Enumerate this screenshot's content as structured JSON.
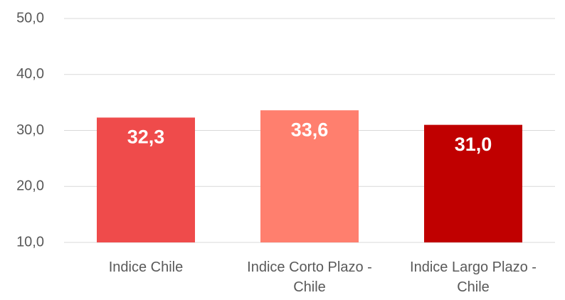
{
  "chart_data": {
    "type": "bar",
    "categories": [
      "Indice Chile",
      "Indice Corto Plazo - Chile",
      "Indice Largo Plazo - Chile"
    ],
    "values": [
      32.3,
      33.6,
      31.0
    ],
    "value_labels": [
      "32,3",
      "33,6",
      "31,0"
    ],
    "colors": [
      "#ef4b4b",
      "#ff7f6e",
      "#c00000"
    ],
    "ylim": [
      10,
      50
    ],
    "yticks": [
      {
        "value": 10,
        "label": "10,0"
      },
      {
        "value": 20,
        "label": "20,0"
      },
      {
        "value": 30,
        "label": "30,0"
      },
      {
        "value": 40,
        "label": "40,0"
      },
      {
        "value": 50,
        "label": "50,0"
      }
    ],
    "grid": true
  }
}
